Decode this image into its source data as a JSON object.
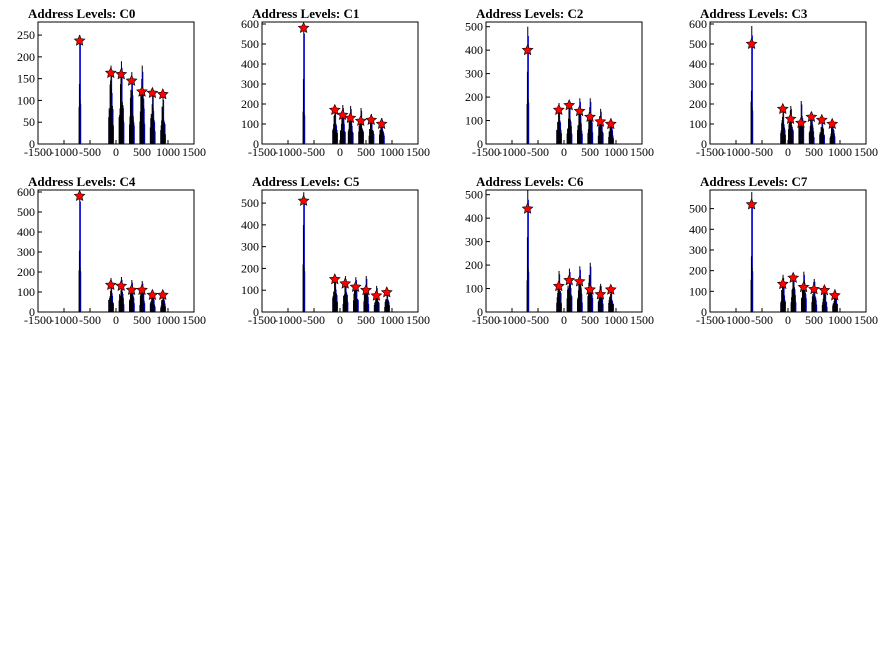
{
  "chart_data": [
    {
      "type": "histogram",
      "title": "Address Levels: C0",
      "xlabel": "",
      "ylabel": "",
      "xlim": [
        -1500,
        1500
      ],
      "ylim": [
        0,
        280
      ],
      "xticks": [
        "-1500",
        "-1000",
        "-500",
        "0",
        "500",
        "1000",
        "1500"
      ],
      "yticks": [
        "0",
        "50",
        "100",
        "150",
        "200",
        "250"
      ],
      "ytick_values": [
        0,
        50,
        100,
        150,
        200,
        250
      ],
      "peaks": [
        {
          "x": -700,
          "y": 237
        },
        {
          "x": -100,
          "y": 163
        },
        {
          "x": 100,
          "y": 160
        },
        {
          "x": 300,
          "y": 145
        },
        {
          "x": 500,
          "y": 120
        },
        {
          "x": 700,
          "y": 117
        },
        {
          "x": 900,
          "y": 114
        }
      ],
      "spikes": [
        {
          "x": -700,
          "y": 250
        },
        {
          "x": -100,
          "y": 180
        },
        {
          "x": 100,
          "y": 190
        },
        {
          "x": 300,
          "y": 165
        },
        {
          "x": 500,
          "y": 180
        },
        {
          "x": 700,
          "y": 120
        },
        {
          "x": 900,
          "y": 110
        }
      ],
      "color_hist": "#0000cc",
      "color_marker": "#ff0000"
    },
    {
      "type": "histogram",
      "title": "Address Levels: C1",
      "xlabel": "",
      "ylabel": "",
      "xlim": [
        -1500,
        1500
      ],
      "ylim": [
        0,
        610
      ],
      "xticks": [
        "-1500",
        "-1000",
        "-500",
        "0",
        "500",
        "1000",
        "1500"
      ],
      "yticks": [
        "0",
        "100",
        "200",
        "300",
        "400",
        "500",
        "600"
      ],
      "ytick_values": [
        0,
        100,
        200,
        300,
        400,
        500,
        600
      ],
      "peaks": [
        {
          "x": -700,
          "y": 580
        },
        {
          "x": -100,
          "y": 170
        },
        {
          "x": 50,
          "y": 145
        },
        {
          "x": 200,
          "y": 130
        },
        {
          "x": 400,
          "y": 115
        },
        {
          "x": 600,
          "y": 120
        },
        {
          "x": 800,
          "y": 100
        }
      ],
      "spikes": [
        {
          "x": -700,
          "y": 600
        },
        {
          "x": -100,
          "y": 190
        },
        {
          "x": 50,
          "y": 195
        },
        {
          "x": 200,
          "y": 190
        },
        {
          "x": 400,
          "y": 180
        },
        {
          "x": 600,
          "y": 150
        },
        {
          "x": 800,
          "y": 130
        }
      ],
      "color_hist": "#0000cc",
      "color_marker": "#ff0000"
    },
    {
      "type": "histogram",
      "title": "Address Levels: C2",
      "xlabel": "",
      "ylabel": "",
      "xlim": [
        -1500,
        1500
      ],
      "ylim": [
        0,
        520
      ],
      "xticks": [
        "-1500",
        "-1000",
        "-500",
        "0",
        "500",
        "1000",
        "1500"
      ],
      "yticks": [
        "0",
        "100",
        "200",
        "300",
        "400",
        "500"
      ],
      "ytick_values": [
        0,
        100,
        200,
        300,
        400,
        500
      ],
      "peaks": [
        {
          "x": -700,
          "y": 400
        },
        {
          "x": -100,
          "y": 145
        },
        {
          "x": 100,
          "y": 165
        },
        {
          "x": 300,
          "y": 140
        },
        {
          "x": 500,
          "y": 115
        },
        {
          "x": 700,
          "y": 95
        },
        {
          "x": 900,
          "y": 85
        }
      ],
      "spikes": [
        {
          "x": -700,
          "y": 500
        },
        {
          "x": -100,
          "y": 175
        },
        {
          "x": 100,
          "y": 170
        },
        {
          "x": 300,
          "y": 195
        },
        {
          "x": 500,
          "y": 195
        },
        {
          "x": 700,
          "y": 150
        },
        {
          "x": 900,
          "y": 110
        }
      ],
      "color_hist": "#0000cc",
      "color_marker": "#ff0000"
    },
    {
      "type": "histogram",
      "title": "Address Levels: C3",
      "xlabel": "",
      "ylabel": "",
      "xlim": [
        -1500,
        1500
      ],
      "ylim": [
        0,
        610
      ],
      "xticks": [
        "-1500",
        "-1000",
        "-500",
        "0",
        "500",
        "1000",
        "1500"
      ],
      "yticks": [
        "0",
        "100",
        "200",
        "300",
        "400",
        "500",
        "600"
      ],
      "ytick_values": [
        0,
        100,
        200,
        300,
        400,
        500,
        600
      ],
      "peaks": [
        {
          "x": -700,
          "y": 500
        },
        {
          "x": -100,
          "y": 175
        },
        {
          "x": 50,
          "y": 125
        },
        {
          "x": 250,
          "y": 105
        },
        {
          "x": 450,
          "y": 135
        },
        {
          "x": 650,
          "y": 120
        },
        {
          "x": 850,
          "y": 100
        }
      ],
      "spikes": [
        {
          "x": -700,
          "y": 590
        },
        {
          "x": -100,
          "y": 180
        },
        {
          "x": 50,
          "y": 190
        },
        {
          "x": 250,
          "y": 215
        },
        {
          "x": 450,
          "y": 160
        },
        {
          "x": 650,
          "y": 125
        },
        {
          "x": 850,
          "y": 120
        }
      ],
      "color_hist": "#0000cc",
      "color_marker": "#ff0000"
    },
    {
      "type": "histogram",
      "title": "Address Levels: C4",
      "xlabel": "",
      "ylabel": "",
      "xlim": [
        -1500,
        1500
      ],
      "ylim": [
        0,
        610
      ],
      "xticks": [
        "-1500",
        "-1000",
        "-500",
        "0",
        "500",
        "1000",
        "1500"
      ],
      "yticks": [
        "0",
        "100",
        "200",
        "300",
        "400",
        "500",
        "600"
      ],
      "ytick_values": [
        0,
        100,
        200,
        300,
        400,
        500,
        600
      ],
      "peaks": [
        {
          "x": -700,
          "y": 580
        },
        {
          "x": -100,
          "y": 135
        },
        {
          "x": 100,
          "y": 130
        },
        {
          "x": 300,
          "y": 110
        },
        {
          "x": 500,
          "y": 110
        },
        {
          "x": 700,
          "y": 85
        },
        {
          "x": 900,
          "y": 85
        }
      ],
      "spikes": [
        {
          "x": -700,
          "y": 600
        },
        {
          "x": -100,
          "y": 170
        },
        {
          "x": 100,
          "y": 175
        },
        {
          "x": 300,
          "y": 160
        },
        {
          "x": 500,
          "y": 155
        },
        {
          "x": 700,
          "y": 110
        },
        {
          "x": 900,
          "y": 95
        }
      ],
      "color_hist": "#0000cc",
      "color_marker": "#ff0000"
    },
    {
      "type": "histogram",
      "title": "Address Levels: C5",
      "xlabel": "",
      "ylabel": "",
      "xlim": [
        -1500,
        1500
      ],
      "ylim": [
        0,
        560
      ],
      "xticks": [
        "-1500",
        "-1000",
        "-500",
        "0",
        "500",
        "1000",
        "1500"
      ],
      "yticks": [
        "0",
        "100",
        "200",
        "300",
        "400",
        "500"
      ],
      "ytick_values": [
        0,
        100,
        200,
        300,
        400,
        500
      ],
      "peaks": [
        {
          "x": -700,
          "y": 510
        },
        {
          "x": -100,
          "y": 150
        },
        {
          "x": 100,
          "y": 130
        },
        {
          "x": 300,
          "y": 115
        },
        {
          "x": 500,
          "y": 100
        },
        {
          "x": 700,
          "y": 75
        },
        {
          "x": 900,
          "y": 90
        }
      ],
      "spikes": [
        {
          "x": -700,
          "y": 550
        },
        {
          "x": -100,
          "y": 165
        },
        {
          "x": 100,
          "y": 165
        },
        {
          "x": 300,
          "y": 160
        },
        {
          "x": 500,
          "y": 165
        },
        {
          "x": 700,
          "y": 120
        },
        {
          "x": 900,
          "y": 100
        }
      ],
      "color_hist": "#0000cc",
      "color_marker": "#ff0000"
    },
    {
      "type": "histogram",
      "title": "Address Levels: C6",
      "xlabel": "",
      "ylabel": "",
      "xlim": [
        -1500,
        1500
      ],
      "ylim": [
        0,
        520
      ],
      "xticks": [
        "-1500",
        "-1000",
        "-500",
        "0",
        "500",
        "1000",
        "1500"
      ],
      "yticks": [
        "0",
        "100",
        "200",
        "300",
        "400",
        "500"
      ],
      "ytick_values": [
        0,
        100,
        200,
        300,
        400,
        500
      ],
      "peaks": [
        {
          "x": -700,
          "y": 440
        },
        {
          "x": -100,
          "y": 110
        },
        {
          "x": 100,
          "y": 135
        },
        {
          "x": 300,
          "y": 130
        },
        {
          "x": 500,
          "y": 95
        },
        {
          "x": 700,
          "y": 75
        },
        {
          "x": 900,
          "y": 95
        }
      ],
      "spikes": [
        {
          "x": -700,
          "y": 520
        },
        {
          "x": -100,
          "y": 175
        },
        {
          "x": 100,
          "y": 185
        },
        {
          "x": 300,
          "y": 195
        },
        {
          "x": 500,
          "y": 210
        },
        {
          "x": 700,
          "y": 120
        },
        {
          "x": 900,
          "y": 100
        }
      ],
      "color_hist": "#0000cc",
      "color_marker": "#ff0000"
    },
    {
      "type": "histogram",
      "title": "Address Levels: C7",
      "xlabel": "",
      "ylabel": "",
      "xlim": [
        -1500,
        1500
      ],
      "ylim": [
        0,
        590
      ],
      "xticks": [
        "-1500",
        "-1000",
        "-500",
        "0",
        "500",
        "1000",
        "1500"
      ],
      "yticks": [
        "0",
        "100",
        "200",
        "300",
        "400",
        "500"
      ],
      "ytick_values": [
        0,
        100,
        200,
        300,
        400,
        500
      ],
      "peaks": [
        {
          "x": -700,
          "y": 520
        },
        {
          "x": -100,
          "y": 135
        },
        {
          "x": 100,
          "y": 165
        },
        {
          "x": 300,
          "y": 120
        },
        {
          "x": 500,
          "y": 110
        },
        {
          "x": 700,
          "y": 105
        },
        {
          "x": 900,
          "y": 80
        }
      ],
      "spikes": [
        {
          "x": -700,
          "y": 580
        },
        {
          "x": -100,
          "y": 180
        },
        {
          "x": 100,
          "y": 185
        },
        {
          "x": 300,
          "y": 195
        },
        {
          "x": 500,
          "y": 160
        },
        {
          "x": 700,
          "y": 120
        },
        {
          "x": 900,
          "y": 110
        }
      ],
      "color_hist": "#0000cc",
      "color_marker": "#ff0000"
    }
  ]
}
